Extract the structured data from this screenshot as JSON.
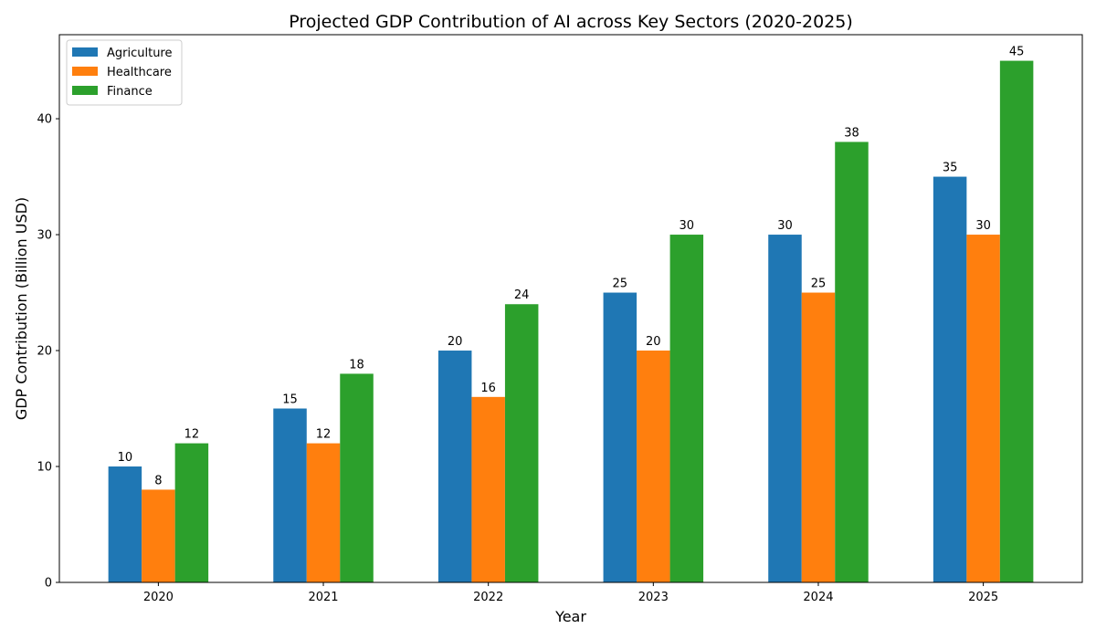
{
  "chart_data": {
    "type": "bar",
    "title": "Projected GDP Contribution of AI across Key Sectors (2020-2025)",
    "xlabel": "Year",
    "ylabel": "GDP Contribution (Billion USD)",
    "categories": [
      "2020",
      "2021",
      "2022",
      "2023",
      "2024",
      "2025"
    ],
    "series": [
      {
        "name": "Agriculture",
        "values": [
          10,
          15,
          20,
          25,
          30,
          35
        ],
        "color": "#1f77b4"
      },
      {
        "name": "Healthcare",
        "values": [
          8,
          12,
          16,
          20,
          25,
          30
        ],
        "color": "#ff7f0e"
      },
      {
        "name": "Finance",
        "values": [
          12,
          18,
          24,
          30,
          38,
          45
        ],
        "color": "#2ca02c"
      }
    ],
    "ylim": [
      0,
      47.25
    ],
    "yticks": [
      0,
      10,
      20,
      30,
      40
    ],
    "grid": false,
    "legend_position": "top-left"
  }
}
